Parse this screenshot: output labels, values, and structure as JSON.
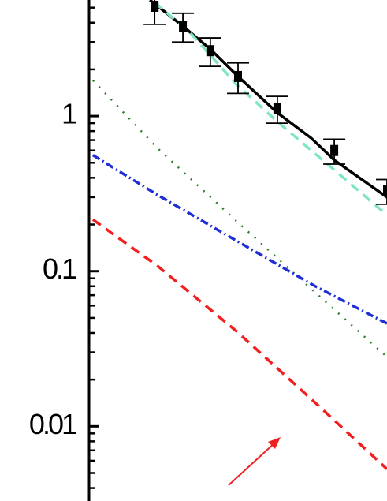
{
  "chart_data": {
    "type": "line",
    "ylog": true,
    "xlim": [
      0,
      10
    ],
    "ylim": [
      0.0033,
      5.6
    ],
    "yticks": [
      0.01,
      0.1,
      1
    ],
    "yminorticks": [
      0.004,
      0.005,
      0.006,
      0.007,
      0.008,
      0.009,
      0.02,
      0.03,
      0.04,
      0.05,
      0.06,
      0.07,
      0.08,
      0.09,
      0.2,
      0.3,
      0.4,
      0.5,
      0.6,
      0.7,
      0.8,
      0.9,
      2,
      3,
      4,
      5
    ],
    "data": {
      "color": "#000000",
      "x": [
        2.2,
        3.15,
        4.07,
        5.0,
        6.32,
        8.23,
        10.0
      ],
      "values": [
        5.1,
        3.8,
        2.64,
        1.8,
        1.12,
        0.6,
        0.33
      ],
      "errors": [
        1.2,
        0.8,
        0.55,
        0.4,
        0.22,
        0.11,
        0.06
      ]
    },
    "series": [
      {
        "color": "#000000",
        "dash": "solid",
        "x": [
          2.04,
          3.15,
          4.07,
          5.0,
          6.32,
          7.46,
          8.23,
          10.0
        ],
        "values": [
          5.6,
          3.8,
          2.7,
          1.8,
          1.05,
          0.72,
          0.52,
          0.3
        ]
      },
      {
        "color": "#7fe6c0",
        "dash": "dash",
        "x": [
          2.2,
          3.36,
          4.95,
          6.32,
          8.23,
          10.0
        ],
        "values": [
          5.4,
          3.5,
          1.6,
          0.92,
          0.45,
          0.23
        ]
      },
      {
        "color": "#2e7d2e",
        "dash": "dot",
        "x": [
          0.13,
          2.3,
          4.95,
          7.59,
          10.0
        ],
        "values": [
          1.7,
          0.62,
          0.21,
          0.073,
          0.028
        ]
      },
      {
        "color": "#1f2fd6",
        "dash": "dashdot",
        "x": [
          0.13,
          2.3,
          4.95,
          7.59,
          10.0
        ],
        "values": [
          0.56,
          0.31,
          0.157,
          0.08,
          0.046
        ]
      },
      {
        "color": "#f02020",
        "dash": "dash",
        "x": [
          0.13,
          2.3,
          4.95,
          7.59,
          10.0
        ],
        "values": [
          0.215,
          0.108,
          0.041,
          0.0142,
          0.0053
        ]
      }
    ]
  }
}
